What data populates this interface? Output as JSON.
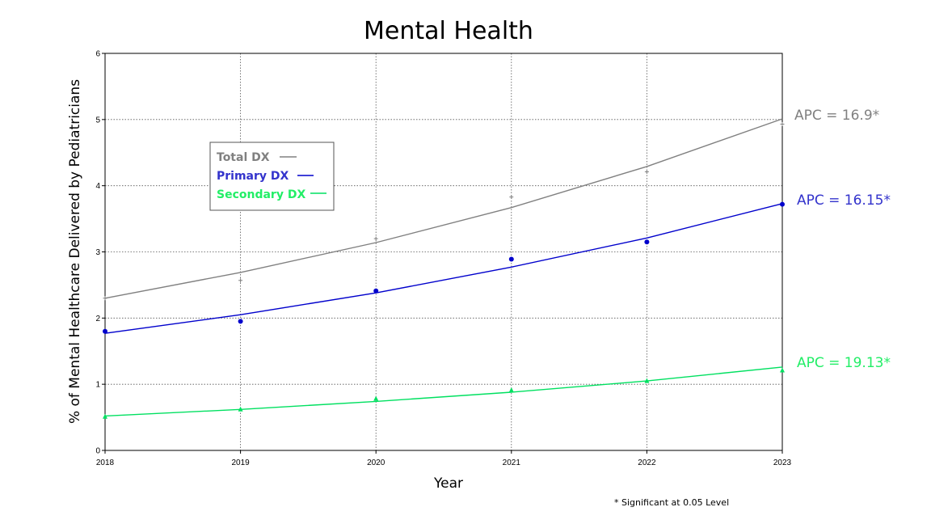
{
  "chart_data": {
    "type": "line",
    "title": "Mental Health",
    "xlabel": "Year",
    "ylabel": "% of Mental Healthcare Delivered by Pediatricians",
    "x": [
      2018,
      2019,
      2020,
      2021,
      2022,
      2023
    ],
    "x_tick_labels": [
      "2018",
      "2019",
      "2020",
      "2021",
      "2022",
      "2023"
    ],
    "y_tick_labels": [
      "0",
      "1",
      "2",
      "3",
      "4",
      "5",
      "6"
    ],
    "ylim": [
      0,
      6
    ],
    "grid": true,
    "legend_placement": "upper-left inside plot",
    "footnote": "* Significant at 0.05 Level",
    "series": [
      {
        "name": "Total DX",
        "color": "#808080",
        "marker": "plus",
        "observed": [
          2.3,
          2.57,
          3.2,
          3.83,
          4.21,
          4.93
        ],
        "fitted": [
          2.3,
          2.69,
          3.14,
          3.67,
          4.29,
          5.01
        ],
        "apc_label": "APC = 16.9*"
      },
      {
        "name": "Primary DX",
        "color": "#0000cc",
        "marker": "circle",
        "observed": [
          1.8,
          1.95,
          2.41,
          2.89,
          3.15,
          3.72
        ],
        "fitted": [
          1.77,
          2.05,
          2.38,
          2.77,
          3.21,
          3.73
        ],
        "apc_label": "APC = 16.15*"
      },
      {
        "name": "Secondary DX",
        "color": "#00e060",
        "marker": "triangle",
        "observed": [
          0.51,
          0.62,
          0.78,
          0.91,
          1.05,
          1.21
        ],
        "fitted": [
          0.52,
          0.62,
          0.74,
          0.88,
          1.05,
          1.26
        ],
        "apc_label": "APC = 19.13*"
      }
    ],
    "label_colors": {
      "total_label": "#808080",
      "primary_label": "#3333cc",
      "secondary_label": "#22ee66"
    }
  }
}
